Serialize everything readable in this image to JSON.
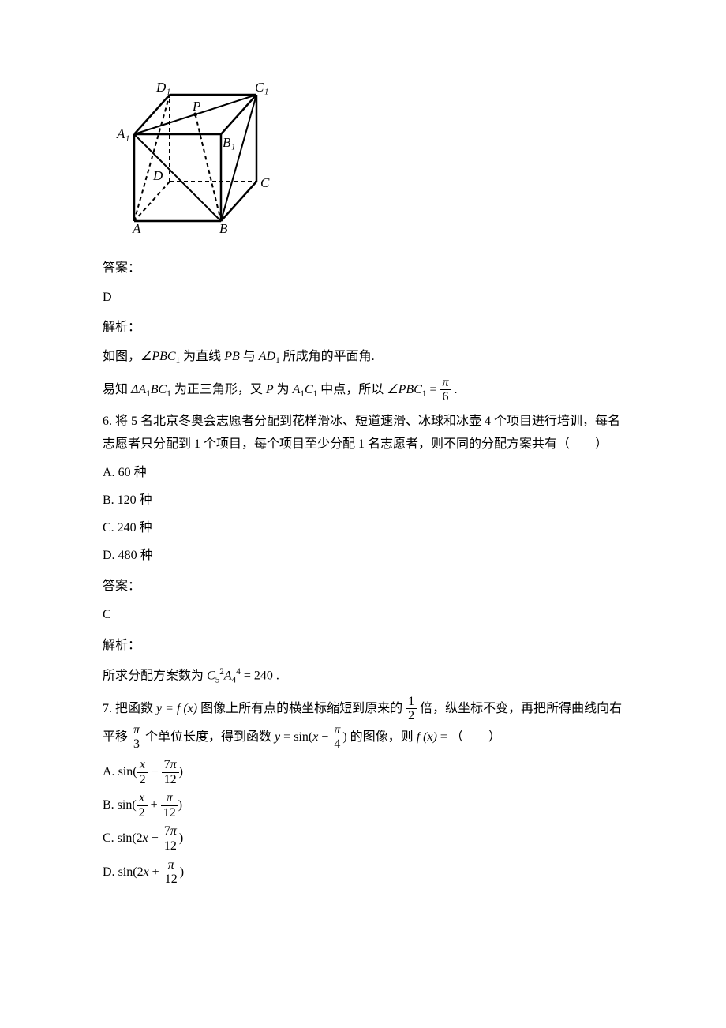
{
  "figure": {
    "labels": {
      "A": "A",
      "B": "B",
      "C": "C",
      "D": "D",
      "A1": "A₁",
      "B1": "B₁",
      "C1": "C₁",
      "D1": "D₁",
      "P": "P"
    },
    "stroke_color": "#000000",
    "dash_color": "#000000",
    "font_family": "Times New Roman",
    "font_size": 16,
    "font_style": "italic"
  },
  "blocks": [
    {
      "type": "answer_label",
      "text": "答案："
    },
    {
      "type": "answer_value",
      "text": "D"
    },
    {
      "type": "explain_label",
      "text": "解析："
    },
    {
      "type": "step",
      "html": "如图，<span class='math'>∠PBC</span><span class='sub'>1</span> 为直线 <span class='math'>PB</span> 与 <span class='math'>AD</span><span class='sub'>1</span> 所成角的平面角."
    },
    {
      "type": "step",
      "html": "易知 <span class='math'>ΔA</span><span class='sub'>1</span><span class='math'>BC</span><span class='sub'>1</span> 为正三角形，又 <span class='math'>P</span> 为 <span class='math'>A</span><span class='sub'>1</span><span class='math'>C</span><span class='sub'>1</span> 中点，所以 <span class='math'>∠PBC</span><span class='sub'>1</span> = <span class='frac'><span class='num'><span class='math'>π</span></span><span class='den'>6</span></span> ."
    },
    {
      "type": "question",
      "num": "6",
      "html": "6. 将 5 名北京冬奥会志愿者分配到花样滑冰、短道速滑、冰球和冰壶 4 个项目进行培训，每名志愿者只分配到 1 个项目，每个项目至少分配 1 名志愿者，则不同的分配方案共有（　　）"
    },
    {
      "type": "option",
      "label": "A.",
      "html": "60 种",
      "cn": true
    },
    {
      "type": "option",
      "label": "B.",
      "html": "120 种",
      "cn": true
    },
    {
      "type": "option",
      "label": "C.",
      "html": "240 种",
      "cn": true
    },
    {
      "type": "option",
      "label": "D.",
      "html": "480 种",
      "cn": true
    },
    {
      "type": "answer_label",
      "text": "答案："
    },
    {
      "type": "answer_value",
      "text": "C"
    },
    {
      "type": "explain_label",
      "text": "解析："
    },
    {
      "type": "step",
      "html": "所求分配方案数为 <span class='math'>C</span><span class='sub'>5</span><span class='sup'>2</span><span class='math'>A</span><span class='sub'>4</span><span class='sup'>4</span> = 240 ."
    },
    {
      "type": "question",
      "num": "7",
      "html": "7. 把函数 <span class='math'>y = f (x)</span> 图像上所有点的横坐标缩短到原来的 <span class='frac'><span class='num'>1</span><span class='den'>2</span></span> 倍，纵坐标不变，再把所得曲线向右平移 <span class='frac'><span class='num'><span class='math'>π</span></span><span class='den'>3</span></span> 个单位长度，得到函数 <span class='math'>y</span> = <span class='upright'>sin</span>(<span class='math'>x</span> − <span class='frac'><span class='num'><span class='math'>π</span></span><span class='den'>4</span></span>) 的图像，则 <span class='math'>f (x)</span> = （　　）"
    },
    {
      "type": "option",
      "label": "A.",
      "html": "<span class='upright'>sin</span>(<span class='frac'><span class='num'><span class='math'>x</span></span><span class='den'>2</span></span> − <span class='frac'><span class='num'>7<span class='math'>π</span></span><span class='den'>12</span></span>)"
    },
    {
      "type": "option",
      "label": "B.",
      "html": "<span class='upright'>sin</span>(<span class='frac'><span class='num'><span class='math'>x</span></span><span class='den'>2</span></span> + <span class='frac'><span class='num'><span class='math'>π</span></span><span class='den'>12</span></span>)"
    },
    {
      "type": "option",
      "label": "C.",
      "html": "<span class='upright'>sin</span>(2<span class='math'>x</span> − <span class='frac'><span class='num'>7<span class='math'>π</span></span><span class='den'>12</span></span>)"
    },
    {
      "type": "option",
      "label": "D.",
      "html": "<span class='upright'>sin</span>(2<span class='math'>x</span> + <span class='frac'><span class='num'><span class='math'>π</span></span><span class='den'>12</span></span>)"
    }
  ]
}
